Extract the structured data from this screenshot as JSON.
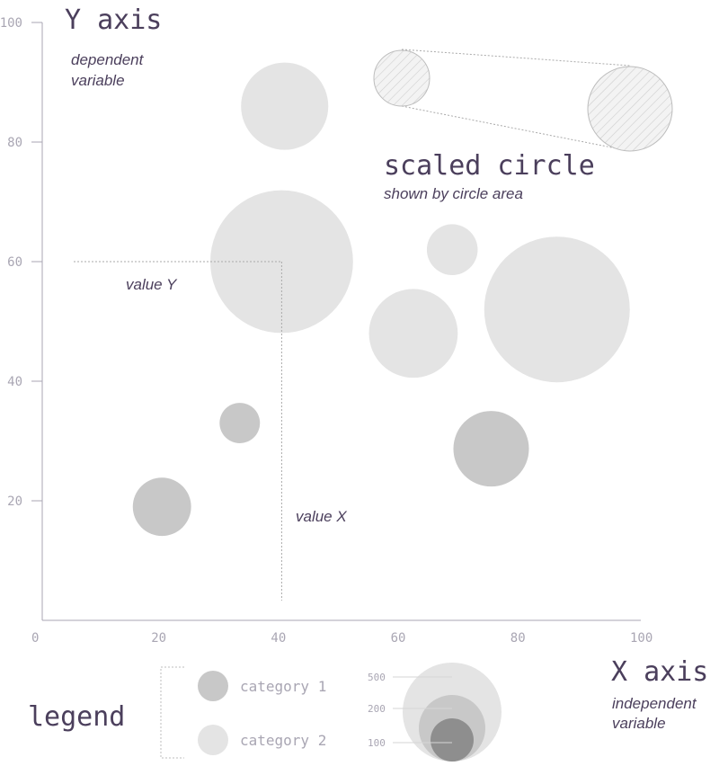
{
  "chart_data": {
    "type": "scatter",
    "subtype": "bubble",
    "xlim": [
      0,
      100
    ],
    "ylim": [
      0,
      100
    ],
    "x_ticks": [
      0,
      20,
      40,
      60,
      80,
      100
    ],
    "y_ticks": [
      20,
      40,
      60,
      80,
      100
    ],
    "grid": false,
    "series": [
      {
        "category": "category 1",
        "color": "#c8c8c8",
        "points": [
          {
            "x": 20,
            "y": 19,
            "size": 125
          },
          {
            "x": 33,
            "y": 33,
            "size": 60
          },
          {
            "x": 75,
            "y": 28.7,
            "size": 210
          }
        ]
      },
      {
        "category": "category 2",
        "color": "#e4e4e4",
        "points": [
          {
            "x": 40.5,
            "y": 86,
            "size": 280
          },
          {
            "x": 40,
            "y": 60,
            "size": 750
          },
          {
            "x": 68.5,
            "y": 62,
            "size": 95
          },
          {
            "x": 62,
            "y": 48,
            "size": 290
          },
          {
            "x": 86,
            "y": 52,
            "size": 780
          }
        ]
      }
    ],
    "highlight": {
      "x": 40,
      "y": 60
    }
  },
  "annotations": {
    "y_axis_title": "Y axis",
    "y_axis_desc_line1": "dependent",
    "y_axis_desc_line2": "variable",
    "x_axis_title": "X axis",
    "x_axis_desc_line1": "independent",
    "x_axis_desc_line2": "variable",
    "scaled_title": "scaled circle",
    "scaled_desc": "shown by circle area",
    "value_y": "value Y",
    "value_x": "value X"
  },
  "legend": {
    "title": "legend",
    "items": [
      {
        "label": "category 1",
        "color": "#c8c8c8"
      },
      {
        "label": "category 2",
        "color": "#e4e4e4"
      }
    ],
    "sizes": [
      {
        "label": "500",
        "color": "#e4e4e4"
      },
      {
        "label": "200",
        "color": "#c8c8c8"
      },
      {
        "label": "100",
        "color": "#8e8e8e"
      }
    ]
  },
  "colors": {
    "axis": "#a9a6b3",
    "text": "#4b3f5c",
    "hatch": "#c9c9c9"
  }
}
